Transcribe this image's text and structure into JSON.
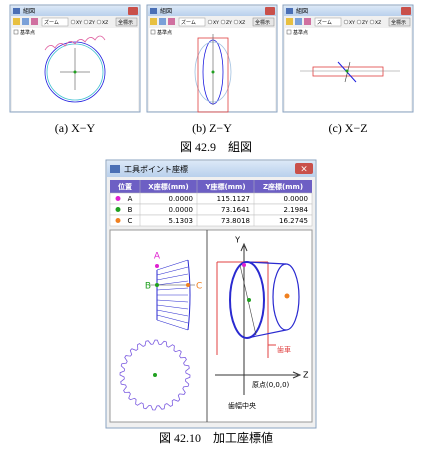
{
  "figure_1": {
    "panels": [
      {
        "window_title": "組図",
        "zoom": "ズーム",
        "views": [
          "XY",
          "ZY",
          "XZ"
        ],
        "button": "全標示",
        "checkbox": "基準点",
        "caption": "(a) X−Y"
      },
      {
        "window_title": "組図",
        "zoom": "ズーム",
        "views": [
          "XY",
          "ZY",
          "XZ"
        ],
        "button": "全標示",
        "checkbox": "基準点",
        "caption": "(b) Z−Y"
      },
      {
        "window_title": "組図",
        "zoom": "ズーム",
        "views": [
          "XY",
          "ZY",
          "XZ"
        ],
        "button": "全標示",
        "checkbox": "基準点",
        "caption": "(c) X−Z"
      }
    ],
    "caption": "図 42.9　組図"
  },
  "figure_2": {
    "window_title": "工具ポイント座標",
    "table": {
      "headers": [
        "位置",
        "X座標(mm)",
        "Y座標(mm)",
        "Z座標(mm)"
      ],
      "rows": [
        [
          "A",
          "0.0000",
          "115.1127",
          "0.0000"
        ],
        [
          "B",
          "0.0000",
          "73.1641",
          "2.1984"
        ],
        [
          "C",
          "5.1303",
          "73.8018",
          "16.2745"
        ]
      ]
    },
    "labels": {
      "a": "A",
      "b": "B",
      "c": "C",
      "y_axis": "Y",
      "z_axis": "Z",
      "gear": "歯車",
      "origin": "原点(0,0,0)",
      "face_center": "歯幅中央"
    },
    "caption": "図 42.10　加工座標値"
  }
}
